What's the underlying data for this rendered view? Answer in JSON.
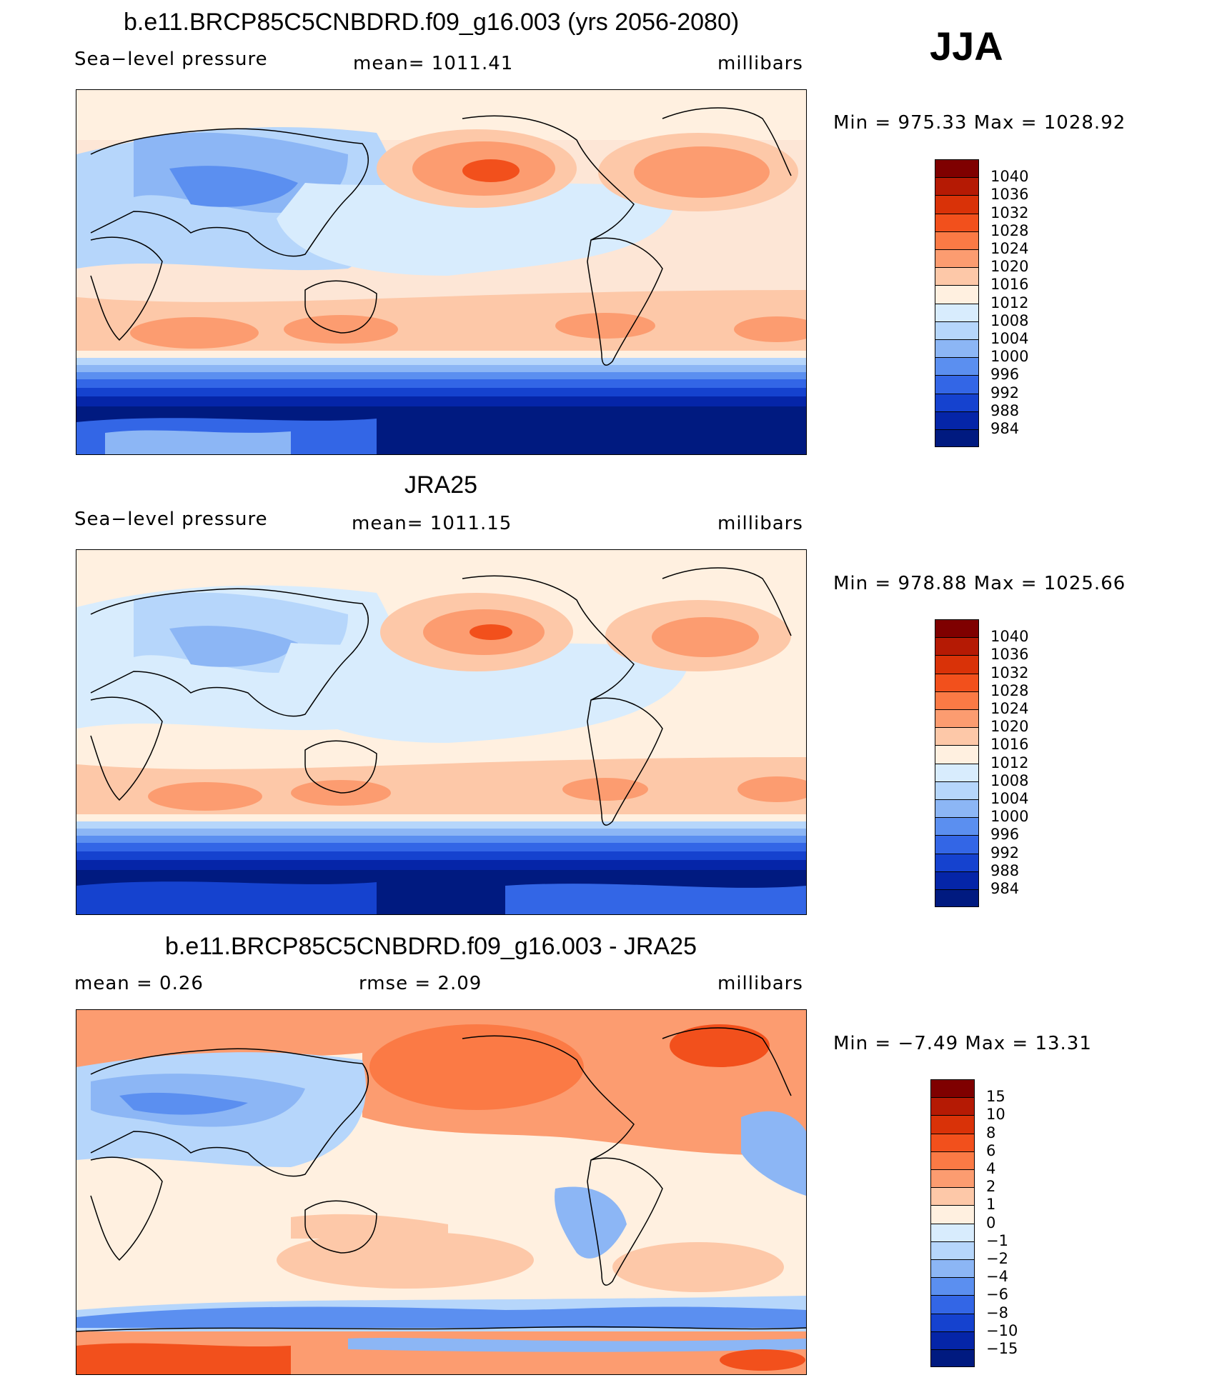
{
  "season": "JJA",
  "panels": [
    {
      "id": "model",
      "title": "b.e11.BRCP85C5CNBDRD.f09_g16.003 (yrs 2056-2080)",
      "left_label": "Sea−level pressure",
      "center_label": "mean=  1011.41",
      "right_label": "millibars",
      "minmax": "Min  =  975.33  Max  =  1028.92",
      "colorbar_labels": [
        "1040",
        "1036",
        "1032",
        "1028",
        "1024",
        "1020",
        "1016",
        "1012",
        "1008",
        "1004",
        "1000",
        "996",
        "992",
        "988",
        "984"
      ]
    },
    {
      "id": "obs",
      "title": "JRA25",
      "left_label": "Sea−level pressure",
      "center_label": "mean=  1011.15",
      "right_label": "millibars",
      "minmax": "Min  =  978.88  Max  =  1025.66",
      "colorbar_labels": [
        "1040",
        "1036",
        "1032",
        "1028",
        "1024",
        "1020",
        "1016",
        "1012",
        "1008",
        "1004",
        "1000",
        "996",
        "992",
        "988",
        "984"
      ]
    },
    {
      "id": "diff",
      "title": "b.e11.BRCP85C5CNBDRD.f09_g16.003 - JRA25",
      "left_label": "mean  =     0.26",
      "center_label": "rmse  =     2.09",
      "right_label": "millibars",
      "minmax": "Min  =    −7.49  Max  =    13.31",
      "colorbar_labels": [
        "15",
        "10",
        "8",
        "6",
        "4",
        "2",
        "1",
        "0",
        "−1",
        "−2",
        "−4",
        "−6",
        "−8",
        "−10",
        "−15"
      ]
    }
  ],
  "colorbar_colors": [
    "#7f0000",
    "#b51a04",
    "#d93208",
    "#f2501c",
    "#fb7a45",
    "#fc9c70",
    "#fdc8a8",
    "#fff0e0",
    "#d8ecfd",
    "#b6d6fb",
    "#8cb6f5",
    "#5b8ff0",
    "#3366e6",
    "#1542cf",
    "#0525a8",
    "#001a80"
  ]
}
